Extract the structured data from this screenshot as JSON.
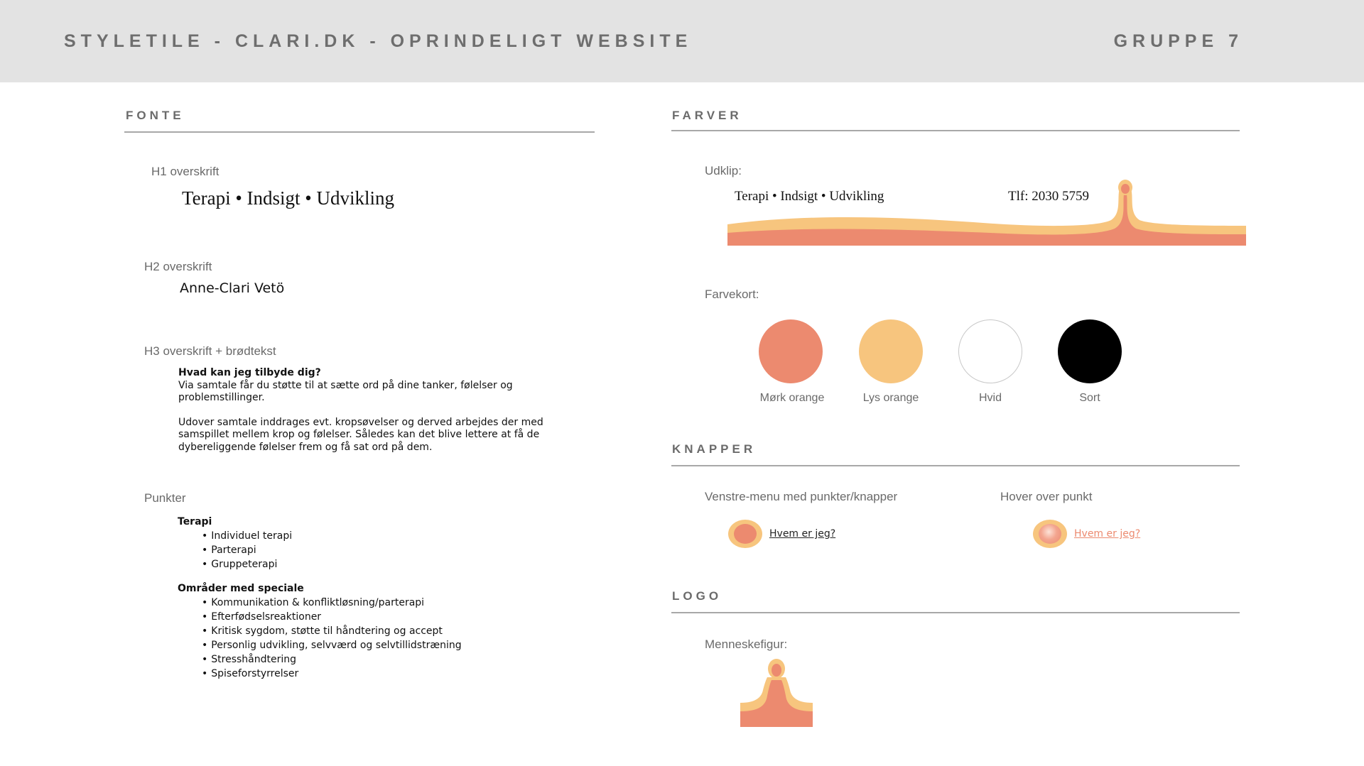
{
  "header": {
    "title": "STYLETILE - CLARI.DK - OPRINDELIGT WEBSITE",
    "group": "GRUPPE 7"
  },
  "fonte": {
    "heading": "FONTE",
    "h1_label": "H1 overskrift",
    "h1_text": "Terapi • Indsigt • Udvikling",
    "h2_label": "H2 overskrift",
    "h2_text": "Anne-Clari Vetö",
    "h3_label": "H3 overskrift + brødtekst",
    "h3_text": "Hvad kan jeg tilbyde dig?",
    "body_p1": "Via samtale får du støtte til at sætte ord på dine tanker, følelser og problemstillinger.",
    "body_p2": "Udover samtale inddrages evt. kropsøvelser og derved arbejdes der med samspillet mellem krop og følelser. Således kan det blive lettere at få de dybereliggende følelser frem og få sat ord på dem.",
    "punkter_label": "Punkter",
    "list1_heading": "Terapi",
    "list1_items": [
      "Individuel terapi",
      "Parterapi",
      "Gruppeterapi"
    ],
    "list2_heading": "Områder med speciale",
    "list2_items": [
      "Kommunikation & konfliktløsning/parterapi",
      "Efterfødselsreaktioner",
      "Kritisk sygdom, støtte til håndtering og accept",
      "Personlig udvikling, selvværd og selvtillidstræning",
      "Stresshåndtering",
      "Spiseforstyrrelser"
    ]
  },
  "farver": {
    "heading": "FARVER",
    "udklip_label": "Udklip:",
    "udklip_slogan": "Terapi • Indsigt • Udvikling",
    "udklip_phone": "Tlf: 2030 5759",
    "farvekort_label": "Farvekort:",
    "swatches": [
      {
        "name": "Mørk orange",
        "color": "#ec8a6f"
      },
      {
        "name": "Lys orange",
        "color": "#f7c57e"
      },
      {
        "name": "Hvid",
        "color": "#ffffff"
      },
      {
        "name": "Sort",
        "color": "#000000"
      }
    ]
  },
  "knapper": {
    "heading": "KNAPPER",
    "menu_label": "Venstre-menu med punkter/knapper",
    "hover_label": "Hover over punkt",
    "button_text": "Hvem er jeg?",
    "hover_button_text": "Hvem er jeg?",
    "link_color": "#222222",
    "hover_link_color": "#ec8a6f"
  },
  "logo": {
    "heading": "LOGO",
    "label": "Menneskefigur:"
  }
}
